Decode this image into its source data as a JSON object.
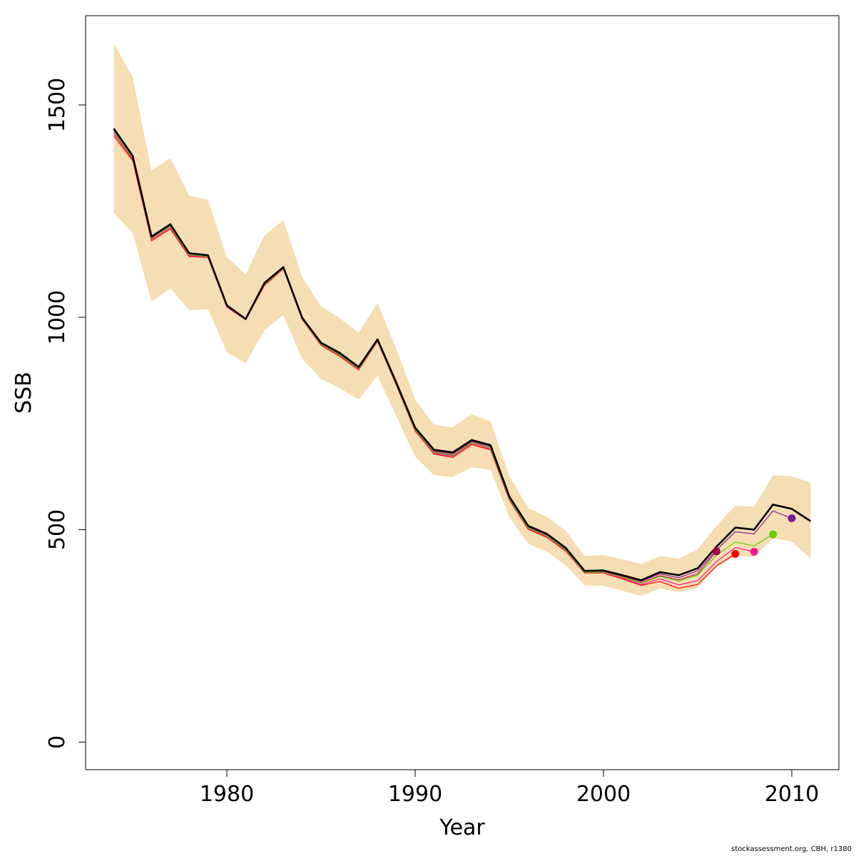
{
  "chart_data": {
    "type": "line",
    "xlabel": "Year",
    "ylabel": "SSB",
    "xlim": [
      1972.5,
      2012.5
    ],
    "ylim": [
      -65,
      1710
    ],
    "x_ticks": [
      1980,
      1990,
      2000,
      2010
    ],
    "y_ticks": [
      0,
      500,
      1000,
      1500
    ],
    "grid": false,
    "confidence_band": {
      "color": "#f5deb3",
      "years": [
        1974,
        1975,
        1976,
        1977,
        1978,
        1979,
        1980,
        1981,
        1982,
        1983,
        1984,
        1985,
        1986,
        1987,
        1988,
        1989,
        1990,
        1991,
        1992,
        1993,
        1994,
        1995,
        1996,
        1997,
        1998,
        1999,
        2000,
        2001,
        2002,
        2003,
        2004,
        2005,
        2006,
        2007,
        2008,
        2009,
        2010,
        2011
      ],
      "upper": [
        1645,
        1565,
        1345,
        1375,
        1287,
        1276,
        1142,
        1101,
        1193,
        1229,
        1095,
        1026,
        998,
        964,
        1034,
        925,
        806,
        747,
        741,
        772,
        755,
        627,
        551,
        530,
        497,
        438,
        441,
        431,
        419,
        438,
        432,
        454,
        509,
        557,
        554,
        628,
        626,
        610
      ],
      "lower": [
        1245,
        1199,
        1037,
        1068,
        1017,
        1019,
        918,
        892,
        970,
        1005,
        902,
        855,
        833,
        806,
        863,
        767,
        672,
        628,
        624,
        647,
        641,
        529,
        467,
        448,
        416,
        369,
        368,
        356,
        344,
        362,
        353,
        363,
        411,
        439,
        436,
        480,
        472,
        432
      ]
    },
    "series": [
      {
        "color": "#000000",
        "x": [
          1974,
          1975,
          1976,
          1977,
          1978,
          1979,
          1980,
          1981,
          1982,
          1983,
          1984,
          1985,
          1986,
          1987,
          1988,
          1989,
          1990,
          1991,
          1992,
          1993,
          1994,
          1995,
          1996,
          1997,
          1998,
          1999,
          2000,
          2001,
          2002,
          2003,
          2004,
          2005,
          2006,
          2007,
          2008,
          2009,
          2010,
          2011
        ],
        "y": [
          1444,
          1380,
          1190,
          1219,
          1151,
          1146,
          1028,
          996,
          1081,
          1118,
          999,
          940,
          916,
          883,
          948,
          846,
          740,
          688,
          682,
          711,
          699,
          578,
          509,
          490,
          457,
          403,
          404,
          393,
          381,
          400,
          393,
          409,
          460,
          505,
          500,
          559,
          549,
          520
        ]
      },
      {
        "color": "#c2185b",
        "x": [
          1974,
          1975,
          1976,
          1977,
          1978,
          1979,
          1980,
          1981,
          1982,
          1983,
          1984,
          1985,
          1986,
          1987,
          1988,
          1989,
          1990,
          1991,
          1992,
          1993,
          1994,
          1995,
          1996,
          1997,
          1998,
          1999,
          2000,
          2001,
          2002,
          2003,
          2004,
          2005,
          2006
        ],
        "y": [
          1438,
          1376,
          1186,
          1215,
          1148,
          1144,
          1026,
          995,
          1079,
          1116,
          997,
          937,
          912,
          880,
          946,
          842,
          736,
          683,
          676,
          706,
          693,
          574,
          505,
          486,
          453,
          400,
          401,
          389,
          375,
          392,
          382,
          396,
          449
        ]
      },
      {
        "color": "#ff0000",
        "x": [
          1974,
          1975,
          1976,
          1977,
          1978,
          1979,
          1980,
          1981,
          1982,
          1983,
          1984,
          1985,
          1986,
          1987,
          1988,
          1989,
          1990,
          1991,
          1992,
          1993,
          1994,
          1995,
          1996,
          1997,
          1998,
          1999,
          2000,
          2001,
          2002,
          2003,
          2004,
          2005,
          2006,
          2007
        ],
        "y": [
          1427,
          1369,
          1180,
          1208,
          1143,
          1141,
          1024,
          994,
          1075,
          1114,
          995,
          934,
          908,
          876,
          943,
          840,
          732,
          678,
          670,
          700,
          688,
          570,
          501,
          482,
          449,
          398,
          398,
          384,
          369,
          378,
          362,
          371,
          415,
          443
        ]
      },
      {
        "color": "#ff1493",
        "x": [
          1974,
          1975,
          1976,
          1977,
          1978,
          1979,
          1980,
          1981,
          1982,
          1983,
          1984,
          1985,
          1986,
          1987,
          1988,
          1989,
          1990,
          1991,
          1992,
          1993,
          1994,
          1995,
          1996,
          1997,
          1998,
          1999,
          2000,
          2001,
          2002,
          2003,
          2004,
          2005,
          2006,
          2007,
          2008
        ],
        "y": [
          1433,
          1372,
          1183,
          1211,
          1145,
          1142,
          1025,
          994,
          1077,
          1115,
          996,
          935,
          910,
          878,
          944,
          841,
          734,
          680,
          673,
          703,
          690,
          572,
          503,
          484,
          451,
          399,
          399,
          386,
          371,
          384,
          370,
          380,
          425,
          458,
          448
        ]
      },
      {
        "color": "#66cc00",
        "x": [
          1974,
          1975,
          1976,
          1977,
          1978,
          1979,
          1980,
          1981,
          1982,
          1983,
          1984,
          1985,
          1986,
          1987,
          1988,
          1989,
          1990,
          1991,
          1992,
          1993,
          1994,
          1995,
          1996,
          1997,
          1998,
          1999,
          2000,
          2001,
          2002,
          2003,
          2004,
          2005,
          2006,
          2007,
          2008,
          2009
        ],
        "y": [
          1437,
          1375,
          1185,
          1214,
          1147,
          1143,
          1026,
          995,
          1078,
          1116,
          997,
          936,
          911,
          879,
          945,
          842,
          735,
          682,
          675,
          705,
          692,
          573,
          504,
          485,
          452,
          400,
          400,
          388,
          374,
          390,
          379,
          393,
          440,
          471,
          462,
          489
        ]
      },
      {
        "color": "#8e1a8e",
        "x": [
          1974,
          1975,
          1976,
          1977,
          1978,
          1979,
          1980,
          1981,
          1982,
          1983,
          1984,
          1985,
          1986,
          1987,
          1988,
          1989,
          1990,
          1991,
          1992,
          1993,
          1994,
          1995,
          1996,
          1997,
          1998,
          1999,
          2000,
          2001,
          2002,
          2003,
          2004,
          2005,
          2006,
          2007,
          2008,
          2009,
          2010
        ],
        "y": [
          1441,
          1378,
          1188,
          1217,
          1150,
          1145,
          1027,
          996,
          1080,
          1117,
          998,
          938,
          914,
          881,
          947,
          844,
          738,
          685,
          679,
          708,
          696,
          576,
          507,
          488,
          455,
          402,
          402,
          391,
          378,
          396,
          387,
          403,
          452,
          495,
          490,
          544,
          527
        ]
      }
    ],
    "terminal_points": [
      {
        "x": 2006,
        "y": 449,
        "color": "#a0004a"
      },
      {
        "x": 2007,
        "y": 443,
        "color": "#ff0000"
      },
      {
        "x": 2008,
        "y": 448,
        "color": "#ff1493"
      },
      {
        "x": 2009,
        "y": 489,
        "color": "#66cc00"
      },
      {
        "x": 2010,
        "y": 527,
        "color": "#7b1a9a"
      }
    ]
  },
  "footer": {
    "credit": "stockassessment.org, CBH, r1380"
  }
}
